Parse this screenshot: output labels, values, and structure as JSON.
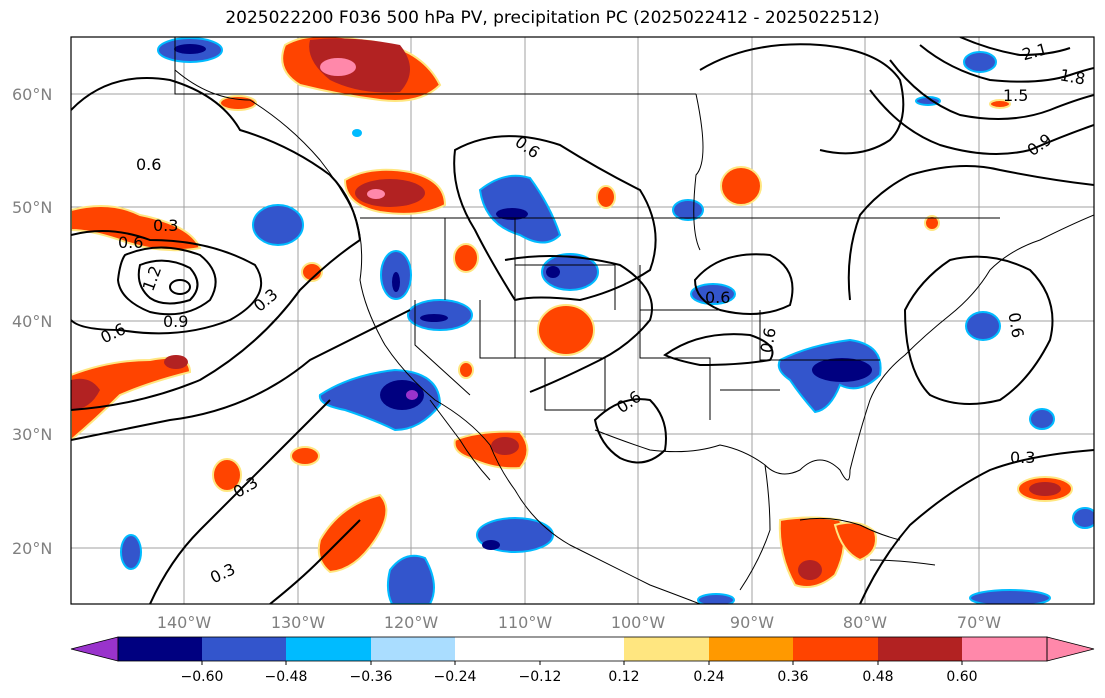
{
  "title": "2025022200 F036 500 hPa PV, precipitation PC (2025022412 - 2025022512)",
  "colors": {
    "neg_extreme": "#9933cc",
    "neg_060": "#000080",
    "neg_048": "#3355cc",
    "neg_036": "#00bbff",
    "neg_024": "#aaddff",
    "neutral": "#ffffff",
    "pos_012": "#ffe680",
    "pos_024": "#ff9900",
    "pos_036": "#ff4400",
    "pos_048": "#b22222",
    "pos_extreme": "#ff88aa",
    "gridline": "#a0a0a0",
    "tick_label": "#808080"
  },
  "map": {
    "lat_labels": [
      "60°N",
      "50°N",
      "40°N",
      "30°N",
      "20°N"
    ],
    "lon_labels": [
      "140°W",
      "130°W",
      "120°W",
      "110°W",
      "100°W",
      "90°W",
      "80°W",
      "70°W"
    ],
    "contour_labels": [
      "0.6",
      "0.3",
      "0.6",
      "1.2",
      "0.9",
      "0.6",
      "0.3",
      "0.6",
      "0.6",
      "0.6",
      "0.6",
      "0.6",
      "0.3",
      "0.3",
      "0.3",
      "2.1",
      "1.8",
      "1.5",
      "0.9"
    ]
  },
  "colorbar": {
    "tick_labels": [
      "−0.60",
      "−0.48",
      "−0.36",
      "−0.24",
      "−0.12",
      "0.12",
      "0.24",
      "0.36",
      "0.48",
      "0.60"
    ]
  }
}
